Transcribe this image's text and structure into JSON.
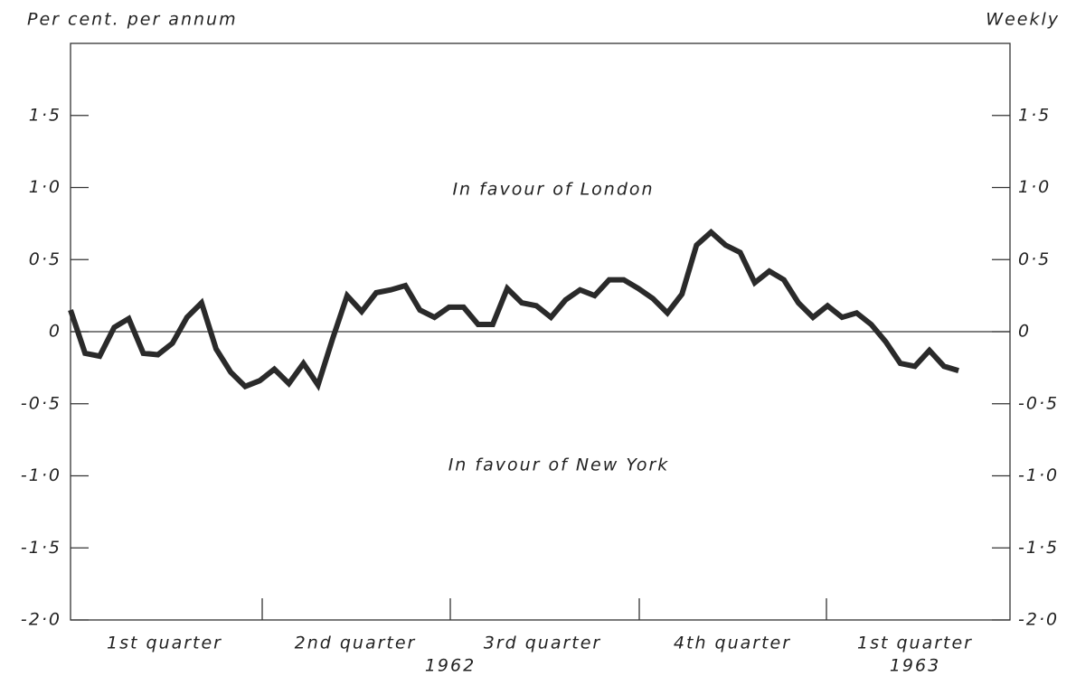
{
  "chart_data": {
    "type": "line",
    "y_label": "Per cent. per annum",
    "y2_label": "Weekly",
    "annotations": [
      "In favour of London",
      "In favour of New York"
    ],
    "quarter_labels": [
      "1st quarter",
      "2nd quarter",
      "3rd quarter",
      "4th quarter",
      "1st quarter"
    ],
    "year_labels": [
      "1962",
      "1963"
    ],
    "color": "#2a2a2a",
    "values": [
      0.15,
      -0.15,
      -0.17,
      0.03,
      0.09,
      -0.15,
      -0.16,
      -0.08,
      0.1,
      0.2,
      -0.12,
      -0.28,
      -0.38,
      -0.34,
      -0.26,
      -0.36,
      -0.22,
      -0.37,
      -0.05,
      0.25,
      0.14,
      0.27,
      0.29,
      0.32,
      0.15,
      0.1,
      0.17,
      0.17,
      0.05,
      0.05,
      0.3,
      0.2,
      0.18,
      0.1,
      0.22,
      0.29,
      0.25,
      0.36,
      0.36,
      0.3,
      0.23,
      0.13,
      0.26,
      0.6,
      0.69,
      0.6,
      0.55,
      0.34,
      0.42,
      0.36,
      0.2,
      0.1,
      0.18,
      0.1,
      0.13,
      0.05,
      -0.07,
      -0.22,
      -0.24,
      -0.13,
      -0.24,
      -0.27
    ],
    "ylim": [
      -2,
      2
    ],
    "yticks": [
      {
        "value": 1.5,
        "label": "1·5"
      },
      {
        "value": 1.0,
        "label": "1·0"
      },
      {
        "value": 0.5,
        "label": "0·5"
      },
      0,
      {
        "value": -0.5,
        "label": "-0·5"
      },
      {
        "value": -1.0,
        "label": "-1·0"
      },
      {
        "value": -1.5,
        "label": "-1·5"
      },
      {
        "value": -2.0,
        "label": "-2·0"
      }
    ],
    "y2lim": [
      -2,
      2
    ],
    "y2ticks": [
      {
        "value": 1.5,
        "label": "1·5"
      },
      {
        "value": 1.0,
        "label": "1·0"
      },
      {
        "value": 0.5,
        "label": "0·5"
      },
      0,
      {
        "value": -0.5,
        "label": "-0·5"
      },
      {
        "value": -1.0,
        "label": "-1·0"
      },
      {
        "value": -1.5,
        "label": "-1·5"
      },
      {
        "value": -2.0,
        "label": "-2·0"
      }
    ]
  }
}
